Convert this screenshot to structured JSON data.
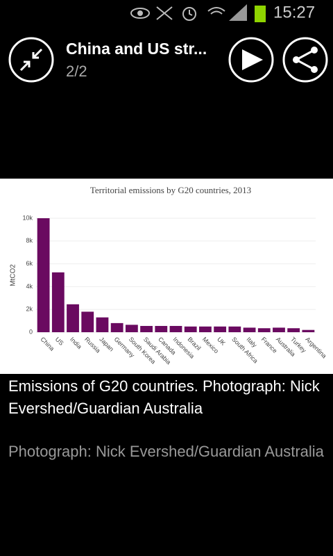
{
  "status_bar": {
    "time": "15:27"
  },
  "header": {
    "title": "China and US str...",
    "counter": "2/2"
  },
  "chart_data": {
    "type": "bar",
    "title": "Territorial emissions by G20 countries, 2013",
    "y_label": "MtCO2",
    "categories": [
      "China",
      "US",
      "India",
      "Russia",
      "Japan",
      "Germany",
      "South Korea",
      "Saudi Arabia",
      "Canada",
      "Indonesia",
      "Brazil",
      "Mexico",
      "UK",
      "South Africa",
      "Italy",
      "France",
      "Australia",
      "Turkey",
      "Argentina"
    ],
    "values": [
      10000,
      5250,
      2450,
      1800,
      1300,
      800,
      650,
      550,
      550,
      550,
      500,
      500,
      500,
      500,
      400,
      350,
      400,
      350,
      200
    ],
    "color": "#6a0a60",
    "ylim": [
      0,
      10000
    ],
    "yticks": [
      0,
      {
        "value": 2000,
        "label": "2k"
      },
      {
        "value": 4000,
        "label": "4k"
      },
      {
        "value": 6000,
        "label": "6k"
      },
      {
        "value": 8000,
        "label": "8k"
      },
      {
        "value": 10000,
        "label": "10k"
      }
    ],
    "grid": true
  },
  "caption": {
    "text": "Emissions of G20 countries. Photograph: Nick Evershed/Guardian Australia",
    "credit": "Photograph: Nick Evershed/Guardian Australia"
  }
}
